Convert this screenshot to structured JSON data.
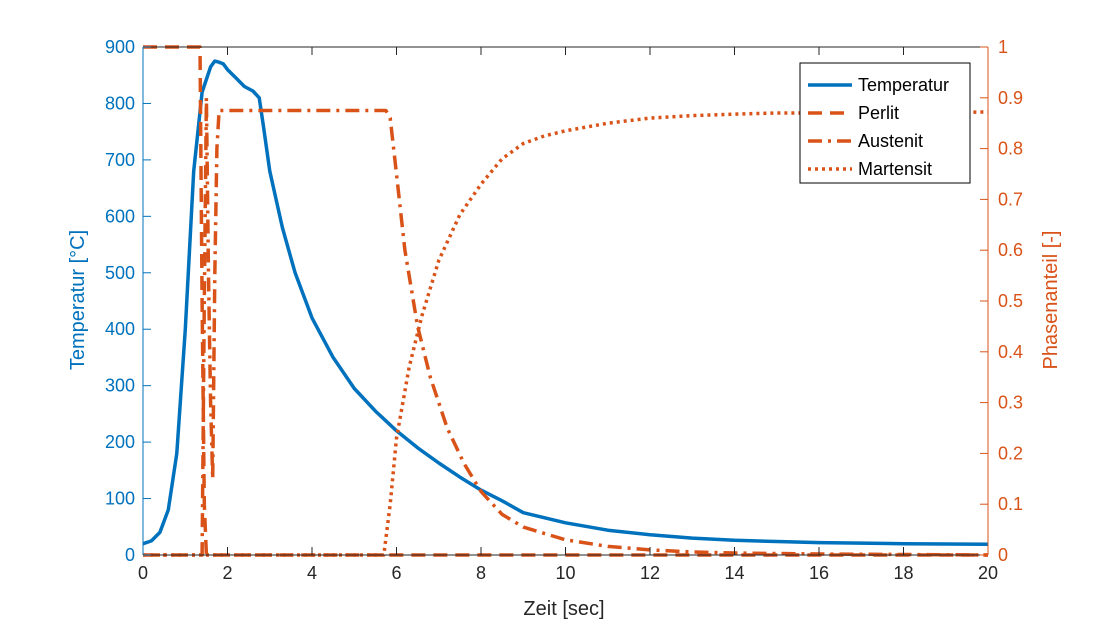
{
  "chart_data": {
    "type": "line",
    "xlabel": "Zeit [sec]",
    "ylabel_left": "Temperatur [°C]",
    "ylabel_right": "Phasenanteil [-]",
    "xlim": [
      0,
      20
    ],
    "ylim_left": [
      0,
      900
    ],
    "ylim_right": [
      0,
      1
    ],
    "x_ticks": [
      0,
      2,
      4,
      6,
      8,
      10,
      12,
      14,
      16,
      18,
      20
    ],
    "y_left_ticks": [
      0,
      100,
      200,
      300,
      400,
      500,
      600,
      700,
      800,
      900
    ],
    "y_right_ticks": [
      0,
      0.1,
      0.2,
      0.3,
      0.4,
      0.5,
      0.6,
      0.7,
      0.8,
      0.9,
      1
    ],
    "grid": false,
    "legend_position": "top-right",
    "colors": {
      "temperature": "#0072BD",
      "phases": "#D95319",
      "axis_text": "#262626"
    },
    "series": [
      {
        "name": "Temperatur",
        "axis": "left",
        "style": "solid",
        "x": [
          0,
          0.2,
          0.4,
          0.6,
          0.8,
          1.0,
          1.2,
          1.4,
          1.6,
          1.7,
          1.8,
          1.9,
          2.0,
          2.2,
          2.4,
          2.6,
          2.75,
          2.85,
          3.0,
          3.3,
          3.6,
          4.0,
          4.5,
          5.0,
          5.5,
          6.0,
          6.5,
          7.0,
          7.5,
          8.0,
          8.5,
          9.0,
          10.0,
          11.0,
          12.0,
          13.0,
          14.0,
          15.0,
          16.0,
          17.0,
          18.0,
          19.0,
          20.0
        ],
        "y": [
          20,
          25,
          40,
          80,
          180,
          400,
          680,
          820,
          865,
          875,
          873,
          870,
          860,
          845,
          830,
          822,
          810,
          760,
          680,
          580,
          500,
          420,
          350,
          295,
          255,
          220,
          190,
          163,
          138,
          115,
          96,
          75,
          57,
          44,
          36,
          30,
          26,
          24,
          22,
          21,
          20,
          19.5,
          19
        ]
      },
      {
        "name": "Perlit",
        "axis": "right",
        "style": "dashed",
        "x": [
          0,
          0.5,
          1.0,
          1.25,
          1.35,
          1.4,
          1.45,
          1.5,
          20
        ],
        "y": [
          1,
          1,
          1,
          1,
          1,
          0.5,
          0.1,
          0,
          0
        ]
      },
      {
        "name": "Austenit",
        "axis": "right",
        "style": "dashdot",
        "x": [
          0,
          1.4,
          1.45,
          1.5,
          1.55,
          1.6,
          1.65,
          1.7,
          1.75,
          1.8,
          5.6,
          5.75,
          5.85,
          6.0,
          6.2,
          6.5,
          6.8,
          7.2,
          7.6,
          8.0,
          8.5,
          9.0,
          10.0,
          11.0,
          12.0,
          13.0,
          14.0,
          16.0,
          18.0,
          20.0
        ],
        "y": [
          0,
          0,
          0.5,
          0.9,
          0.55,
          0.3,
          0.15,
          0.55,
          0.8,
          0.875,
          0.875,
          0.875,
          0.86,
          0.75,
          0.6,
          0.45,
          0.35,
          0.25,
          0.18,
          0.125,
          0.08,
          0.055,
          0.03,
          0.017,
          0.01,
          0.006,
          0.004,
          0.002,
          0.001,
          0
        ]
      },
      {
        "name": "Martensit",
        "axis": "right",
        "style": "dotted",
        "x": [
          0,
          5.7,
          5.85,
          6.0,
          6.3,
          6.6,
          7.0,
          7.5,
          8.0,
          8.5,
          9.0,
          9.5,
          10.0,
          11.0,
          12.0,
          13.0,
          14.0,
          15.0,
          16.0,
          18.0,
          20.0
        ],
        "y": [
          0,
          0,
          0.1,
          0.23,
          0.37,
          0.47,
          0.58,
          0.67,
          0.73,
          0.78,
          0.81,
          0.825,
          0.835,
          0.85,
          0.86,
          0.865,
          0.868,
          0.87,
          0.87,
          0.871,
          0.872
        ]
      }
    ]
  }
}
